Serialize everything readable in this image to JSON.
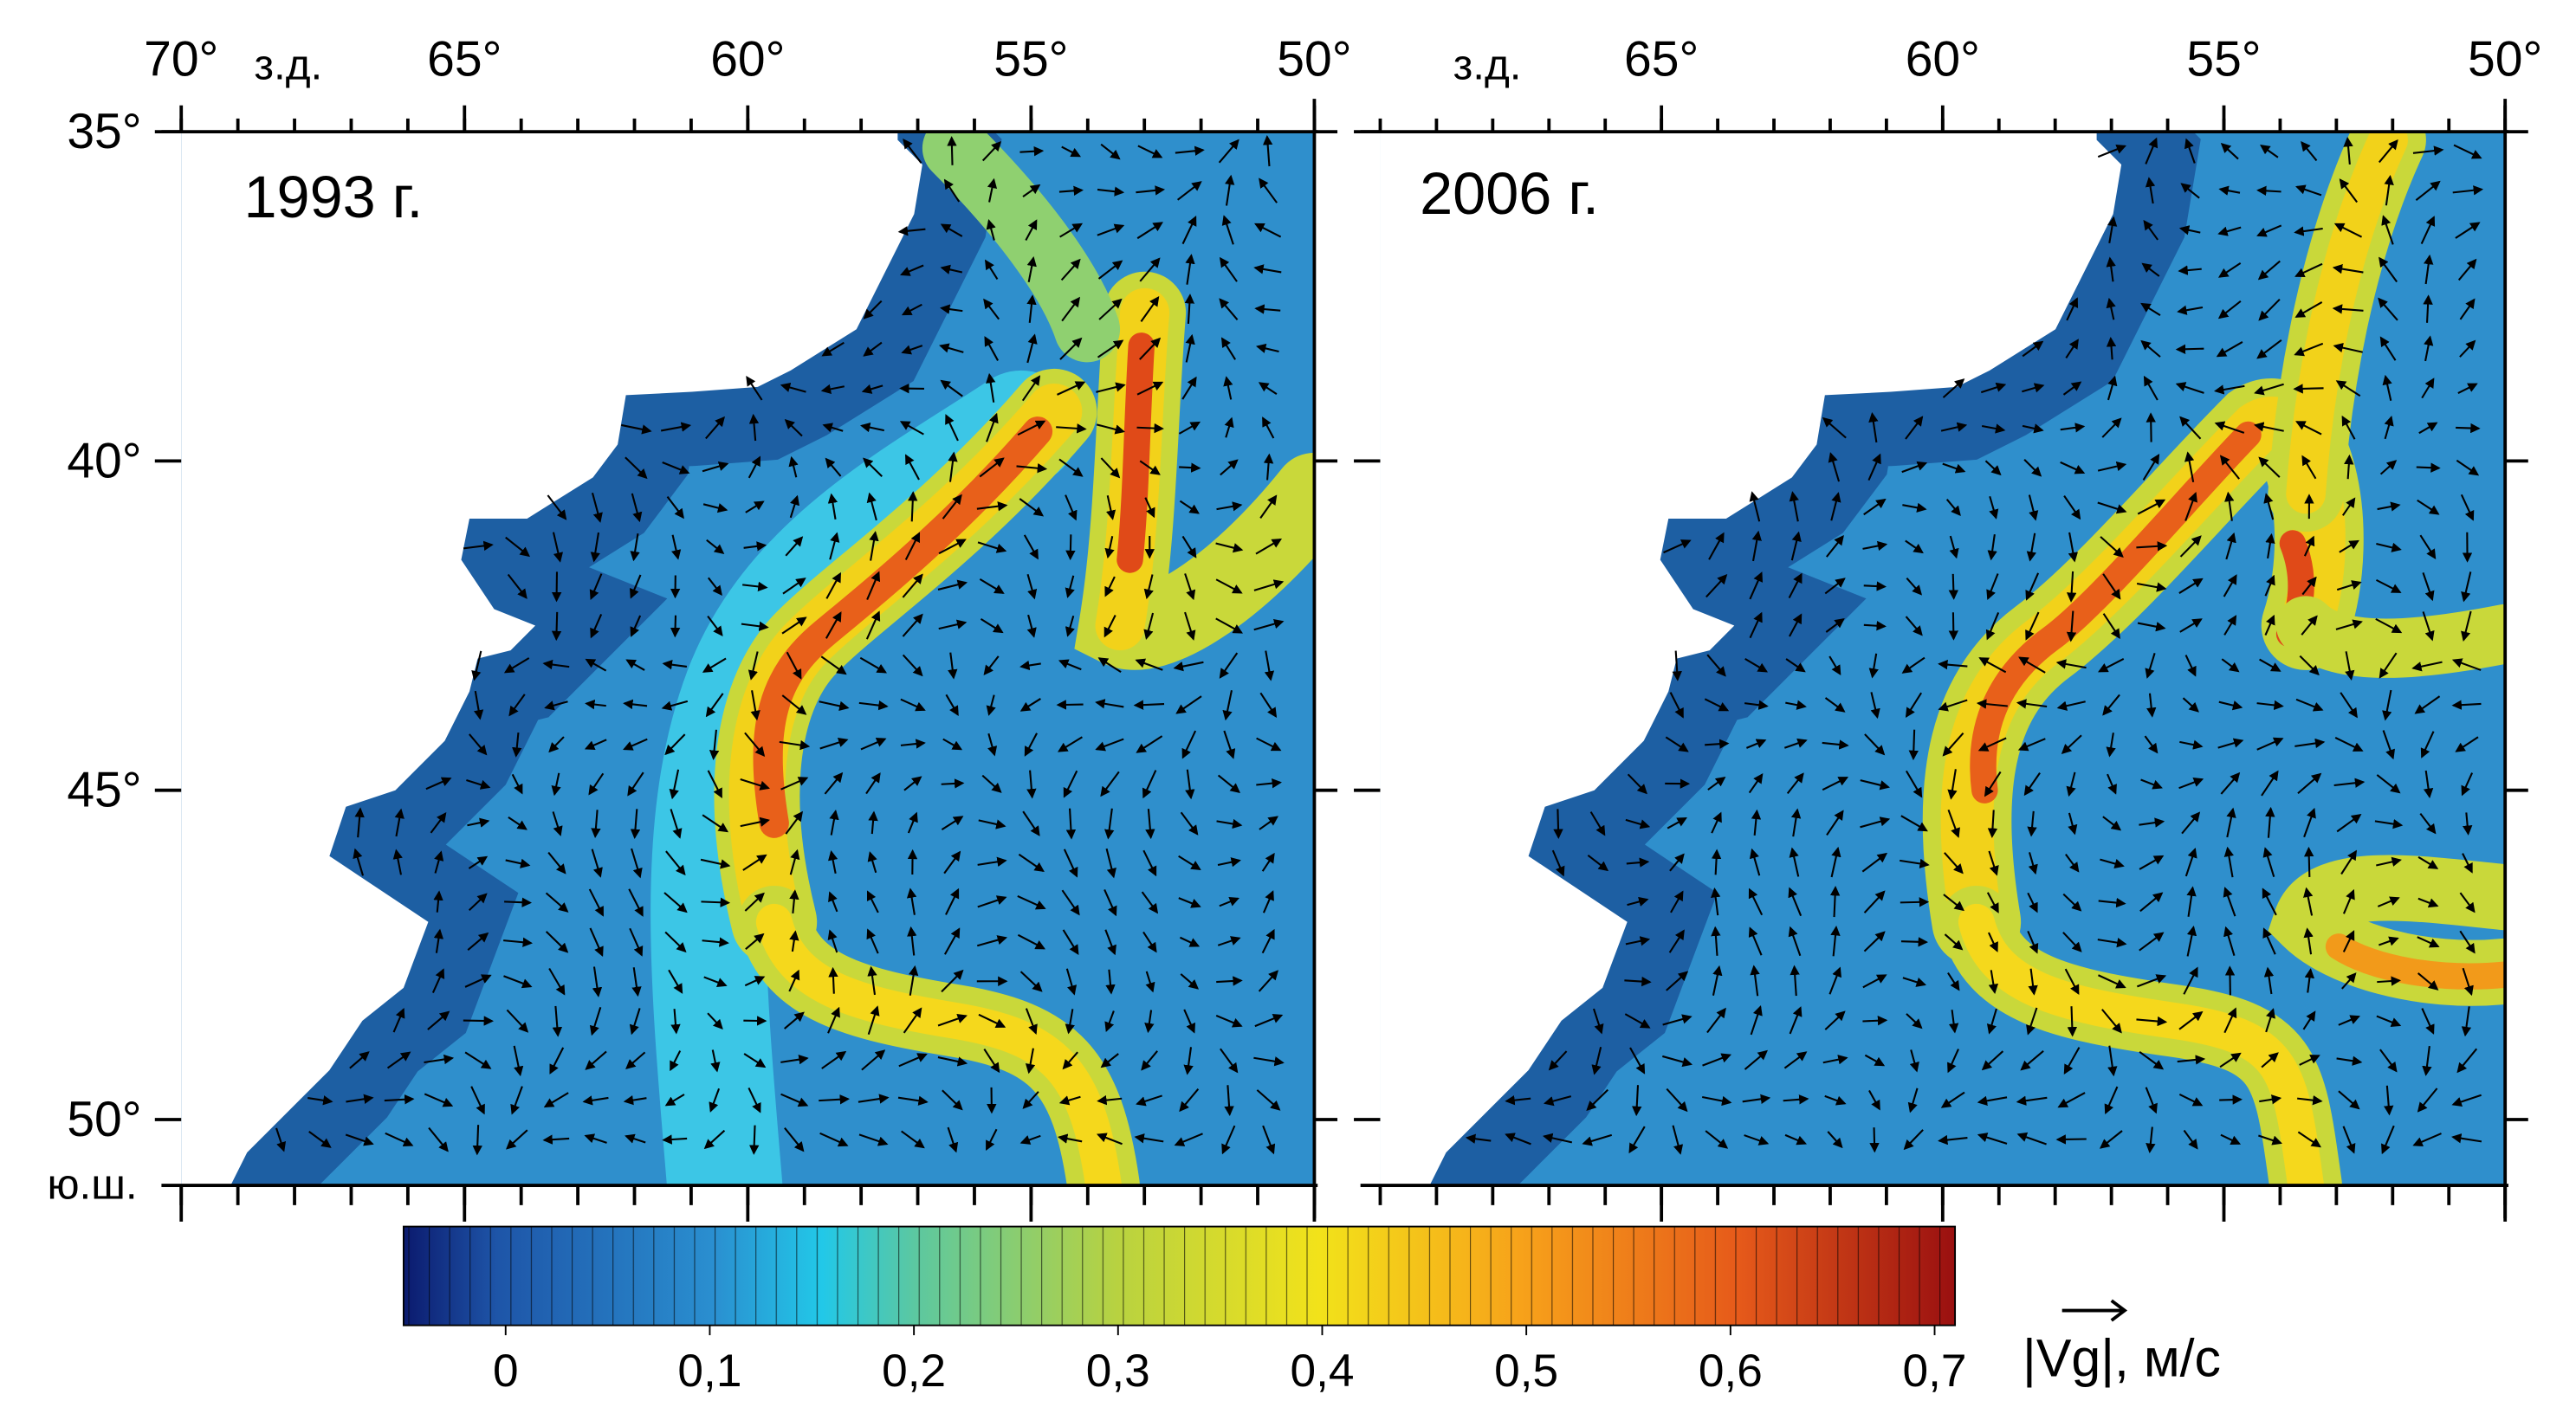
{
  "lon_hemisphere": "з.д.",
  "lat_hemisphere": "ю.ш.",
  "lonlim": [
    70,
    50
  ],
  "latlim": [
    35,
    51
  ],
  "lat_ticks": [
    {
      "value": 35,
      "label": "35°"
    },
    {
      "value": 40,
      "label": "40°"
    },
    {
      "value": 45,
      "label": "45°"
    },
    {
      "value": 50,
      "label": "50°"
    }
  ],
  "panels": [
    {
      "title": "1993 г.",
      "lon_ticks": [
        {
          "value": 70,
          "label": "70°"
        },
        {
          "value": 65,
          "label": "65°"
        },
        {
          "value": 60,
          "label": "60°"
        },
        {
          "value": 55,
          "label": "55°"
        },
        {
          "value": 50,
          "label": "50°"
        }
      ]
    },
    {
      "title": "2006 г.",
      "lon_ticks": [
        {
          "value": 65,
          "label": "65°"
        },
        {
          "value": 60,
          "label": "60°"
        },
        {
          "value": 55,
          "label": "55°"
        },
        {
          "value": 50,
          "label": "50°"
        }
      ]
    }
  ],
  "colorbar": {
    "label": "|Vg|, м/с",
    "lim": [
      -0.05,
      0.71
    ],
    "ticks": [
      0,
      {
        "value": 0.1,
        "label": "0,1"
      },
      {
        "value": 0.2,
        "label": "0,2"
      },
      {
        "value": 0.3,
        "label": "0,3"
      },
      {
        "value": 0.4,
        "label": "0,4"
      },
      {
        "value": 0.5,
        "label": "0,5"
      },
      {
        "value": 0.6,
        "label": "0,6"
      },
      {
        "value": 0.7,
        "label": "0,7"
      }
    ]
  }
}
